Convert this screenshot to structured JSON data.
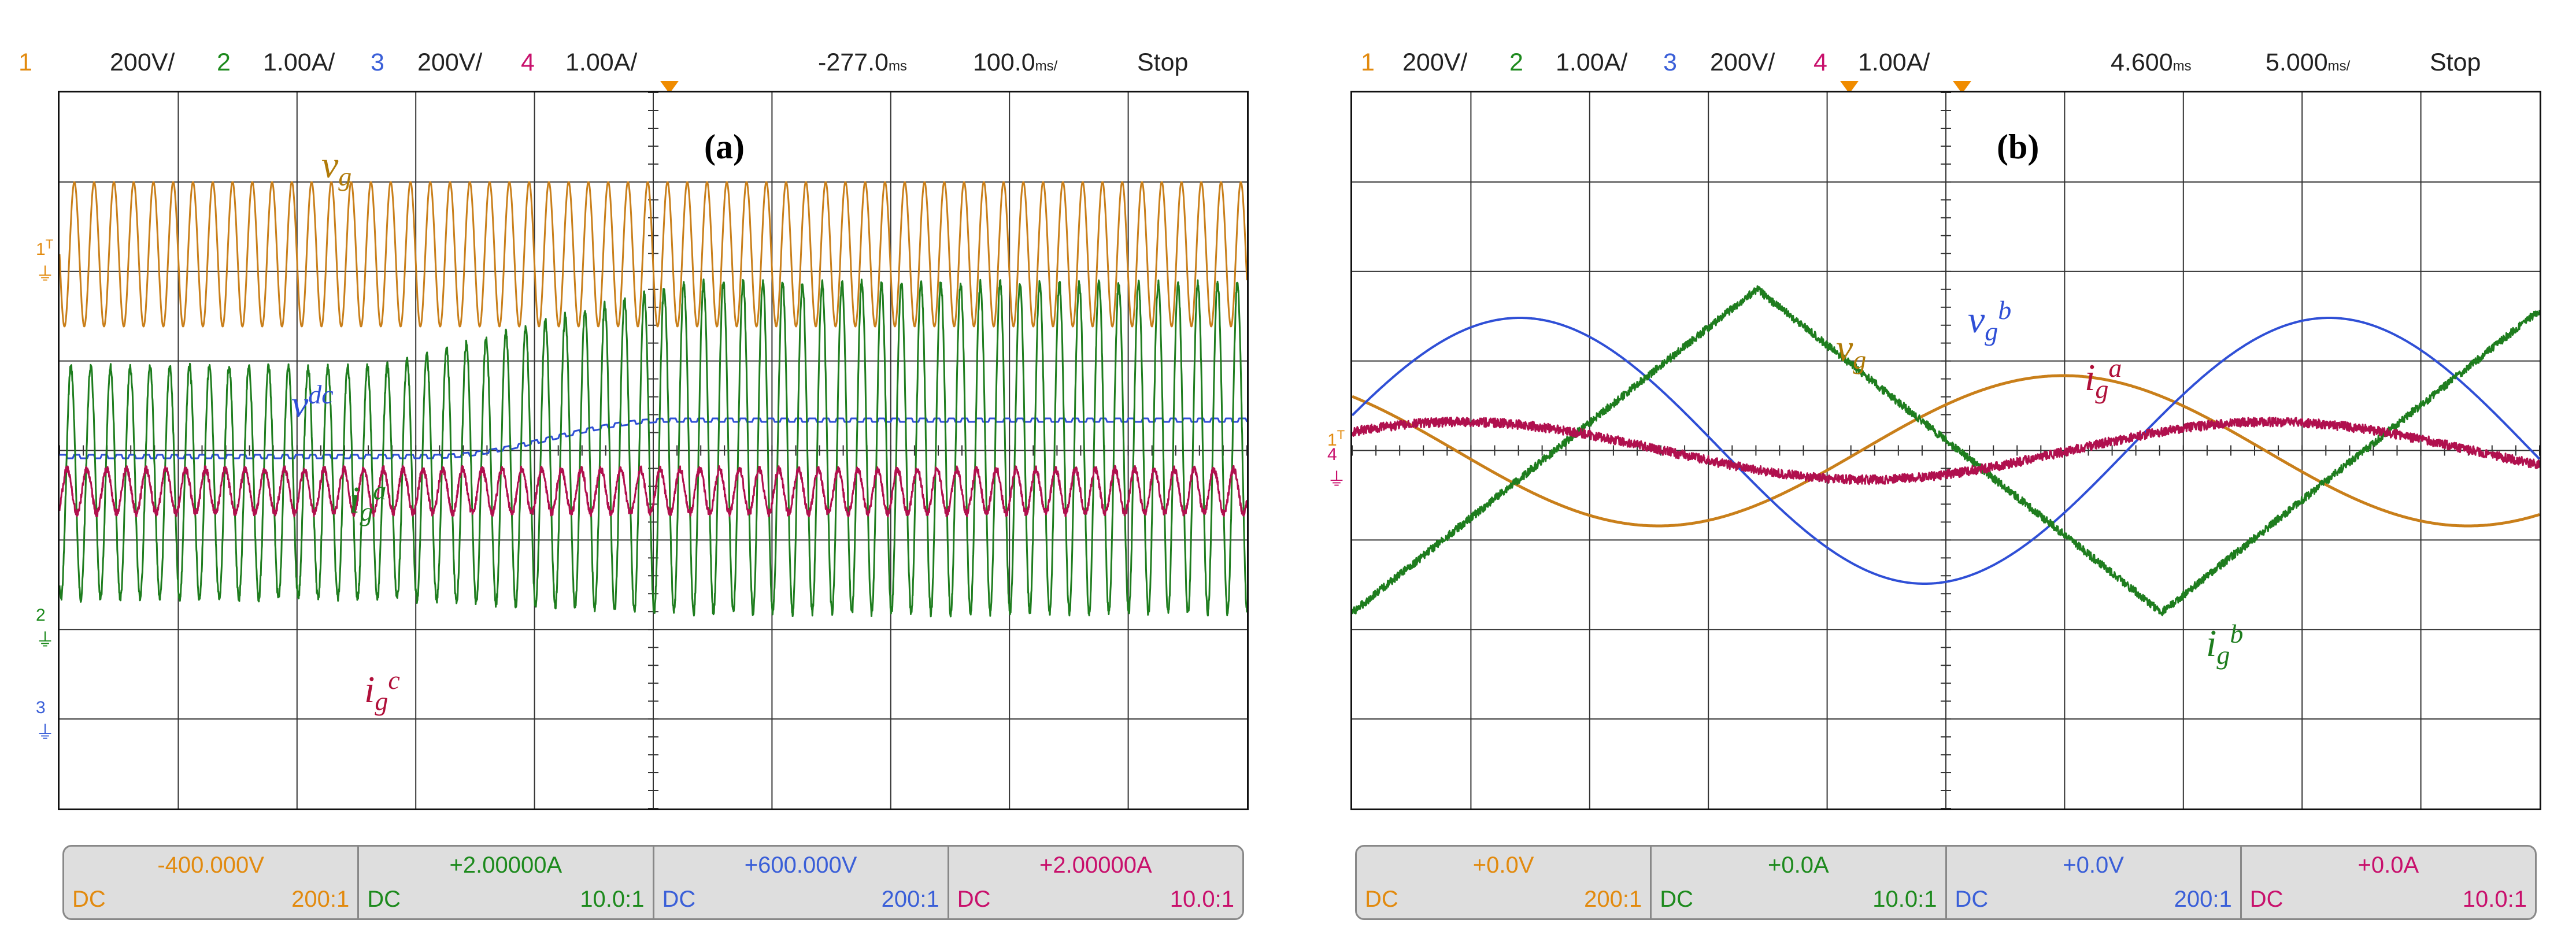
{
  "colors": {
    "ch1": "#e28a0e",
    "ch2": "#1d8a1d",
    "ch3": "#3a5fd8",
    "ch4": "#c8106c",
    "wave_ch1": "#c97f1a",
    "wave_ch2": "#1e7d1e",
    "wave_ch3": "#2f4fd6",
    "wave_ch4": "#b0104e",
    "label_red": "#b0103a",
    "label_vg": "#b07a08"
  },
  "scopes": [
    {
      "panel_label": "(a)",
      "header": {
        "ch1_num": "1",
        "ch1_scale": "200V/",
        "ch2_num": "2",
        "ch2_scale": "1.00A/",
        "ch3_num": "3",
        "ch3_scale": "200V/",
        "ch4_num": "4",
        "ch4_scale": "1.00A/",
        "trigger_pos": "-277.0",
        "trigger_unit": "ms",
        "timebase": "100.0",
        "timebase_unit": "ms/",
        "status": "Stop"
      },
      "markers": {
        "ch1": "1",
        "ch24": "2",
        "ch3": "3",
        "trigger": "T"
      },
      "labels": {
        "vg": "v",
        "vg_sub": "g",
        "vdc": "v",
        "vdc_sup": "dc",
        "iga": "i",
        "iga_sub": "g",
        "iga_sup": "a",
        "igc": "i",
        "igc_sub": "g",
        "igc_sup": "c"
      },
      "footer": [
        {
          "value": "-400.000V",
          "coupling": "DC",
          "probe": "200:1",
          "color": "#e28a0e"
        },
        {
          "value": "+2.00000A",
          "coupling": "DC",
          "probe": "10.0:1",
          "color": "#1d8a1d"
        },
        {
          "value": "+600.000V",
          "coupling": "DC",
          "probe": "200:1",
          "color": "#3a5fd8"
        },
        {
          "value": "+2.00000A",
          "coupling": "DC",
          "probe": "10.0:1",
          "color": "#c8106c"
        }
      ]
    },
    {
      "panel_label": "(b)",
      "header": {
        "ch1_num": "1",
        "ch1_scale": "200V/",
        "ch2_num": "2",
        "ch2_scale": "1.00A/",
        "ch3_num": "3",
        "ch3_scale": "200V/",
        "ch4_num": "4",
        "ch4_scale": "1.00A/",
        "trigger_pos": "4.600",
        "trigger_unit": "ms",
        "timebase": "5.000",
        "timebase_unit": "ms/",
        "status": "Stop"
      },
      "markers": {
        "ch1": "1",
        "ch24": "4",
        "ch3": "",
        "trigger": "T"
      },
      "labels": {
        "vg": "v",
        "vg_sub": "g",
        "vgb": "v",
        "vgb_sub": "g",
        "vgb_sup": "b",
        "iga": "i",
        "iga_sub": "g",
        "iga_sup": "a",
        "igb": "i",
        "igb_sub": "g",
        "igb_sup": "b"
      },
      "footer": [
        {
          "value": "+0.0V",
          "coupling": "DC",
          "probe": "200:1",
          "color": "#e28a0e"
        },
        {
          "value": "+0.0A",
          "coupling": "DC",
          "probe": "10.0:1",
          "color": "#1d8a1d"
        },
        {
          "value": "+0.0V",
          "coupling": "DC",
          "probe": "200:1",
          "color": "#3a5fd8"
        },
        {
          "value": "+0.0A",
          "coupling": "DC",
          "probe": "10.0:1",
          "color": "#c8106c"
        }
      ]
    }
  ]
}
